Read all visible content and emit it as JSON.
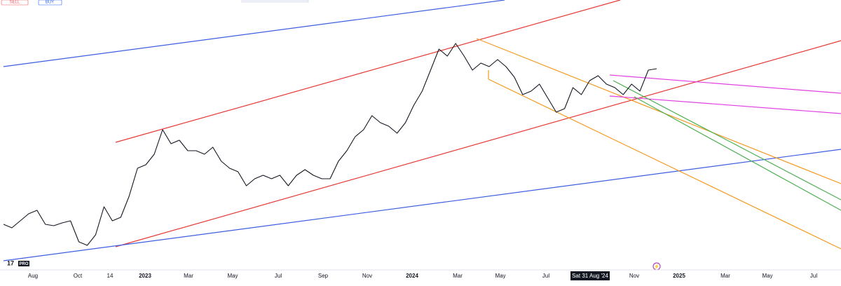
{
  "buttons": [
    "SELL",
    "BUY"
  ],
  "logo": "PRO",
  "chart_data": {
    "type": "line",
    "color": "#131722",
    "x_axis_labels": [
      "Aug",
      "Oct",
      "14",
      "2023",
      "Mar",
      "May",
      "Jul",
      "Sep",
      "Nov",
      "2024",
      "Mar",
      "May",
      "Jul",
      "Sat 31 Aug '24",
      "Nov",
      "2025",
      "Mar",
      "May",
      "Jul"
    ],
    "values": [
      60,
      55,
      65,
      75,
      80,
      60,
      58,
      62,
      65,
      35,
      30,
      45,
      85,
      65,
      70,
      100,
      140,
      145,
      160,
      195,
      175,
      180,
      165,
      165,
      160,
      170,
      150,
      140,
      135,
      115,
      125,
      130,
      125,
      130,
      115,
      130,
      138,
      130,
      125,
      125,
      150,
      165,
      185,
      195,
      215,
      205,
      200,
      190,
      205,
      230,
      250,
      280,
      310,
      300,
      318,
      300,
      280,
      290,
      285,
      295,
      285,
      270,
      245,
      250,
      260,
      240,
      220,
      225,
      255,
      245,
      265,
      272,
      260,
      255,
      245,
      260,
      250,
      280,
      282
    ]
  }
}
